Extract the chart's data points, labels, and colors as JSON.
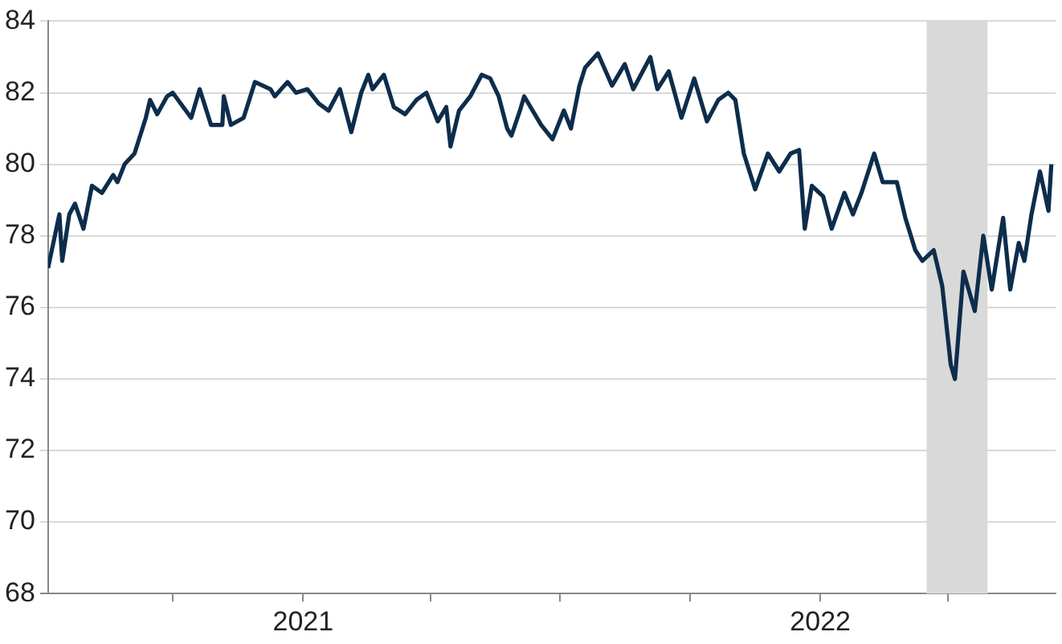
{
  "chart_data": {
    "type": "line",
    "xlim": [
      "2020-07-05",
      "2022-06-16"
    ],
    "ylim": [
      68,
      84
    ],
    "yticks": [
      68,
      70,
      72,
      74,
      76,
      78,
      80,
      82,
      84
    ],
    "xticks": [
      {
        "value": "2020-10-01",
        "label": null
      },
      {
        "value": "2021-01-01",
        "label": "2021"
      },
      {
        "value": "2021-04-01",
        "label": null
      },
      {
        "value": "2021-07-01",
        "label": null
      },
      {
        "value": "2021-10-01",
        "label": null
      },
      {
        "value": "2022-01-01",
        "label": "2022"
      },
      {
        "value": "2022-04-01",
        "label": null
      }
    ],
    "grid": "y",
    "legend": false,
    "marker": "none",
    "line_style": "solid",
    "bands": [
      {
        "axis": "x",
        "from": "2022-03-17",
        "to": "2022-04-29",
        "color": "#d9d9d9"
      }
    ],
    "series": [
      {
        "color": "#0d2d4c",
        "x": [
          "2020-07-05",
          "2020-07-13",
          "2020-07-15",
          "2020-07-20",
          "2020-07-24",
          "2020-07-30",
          "2020-08-05",
          "2020-08-12",
          "2020-08-20",
          "2020-08-23",
          "2020-08-28",
          "2020-09-04",
          "2020-09-12",
          "2020-09-15",
          "2020-09-20",
          "2020-09-27",
          "2020-10-01",
          "2020-10-14",
          "2020-10-20",
          "2020-10-28",
          "2020-11-05",
          "2020-11-06",
          "2020-11-11",
          "2020-11-20",
          "2020-11-28",
          "2020-12-09",
          "2020-12-12",
          "2020-12-21",
          "2020-12-27",
          "2021-01-04",
          "2021-01-12",
          "2021-01-19",
          "2021-01-27",
          "2021-02-04",
          "2021-02-11",
          "2021-02-16",
          "2021-02-19",
          "2021-02-27",
          "2021-03-06",
          "2021-03-14",
          "2021-03-22",
          "2021-03-29",
          "2021-04-06",
          "2021-04-12",
          "2021-04-15",
          "2021-04-21",
          "2021-04-29",
          "2021-05-07",
          "2021-05-13",
          "2021-05-19",
          "2021-05-25",
          "2021-05-28",
          "2021-06-03",
          "2021-06-06",
          "2021-06-18",
          "2021-06-26",
          "2021-07-04",
          "2021-07-09",
          "2021-07-15",
          "2021-07-19",
          "2021-07-28",
          "2021-08-07",
          "2021-08-16",
          "2021-08-22",
          "2021-09-03",
          "2021-09-08",
          "2021-09-16",
          "2021-09-25",
          "2021-10-04",
          "2021-10-13",
          "2021-10-21",
          "2021-10-28",
          "2021-11-02",
          "2021-11-08",
          "2021-11-16",
          "2021-11-25",
          "2021-12-03",
          "2021-12-11",
          "2021-12-17",
          "2021-12-21",
          "2021-12-26",
          "2022-01-03",
          "2022-01-09",
          "2022-01-18",
          "2022-01-24",
          "2022-01-30",
          "2022-02-08",
          "2022-02-14",
          "2022-02-24",
          "2022-03-02",
          "2022-03-09",
          "2022-03-14",
          "2022-03-22",
          "2022-03-28",
          "2022-04-03",
          "2022-04-06",
          "2022-04-12",
          "2022-04-20",
          "2022-04-26",
          "2022-05-02",
          "2022-05-10",
          "2022-05-15",
          "2022-05-21",
          "2022-05-25",
          "2022-05-30",
          "2022-06-05",
          "2022-06-11",
          "2022-06-13"
        ],
        "values": [
          77.1,
          78.6,
          77.3,
          78.6,
          78.9,
          78.2,
          79.4,
          79.2,
          79.7,
          79.5,
          80.0,
          80.3,
          81.3,
          81.8,
          81.4,
          81.9,
          82.0,
          81.3,
          82.1,
          81.1,
          81.1,
          81.9,
          81.1,
          81.3,
          82.3,
          82.1,
          81.9,
          82.3,
          82.0,
          82.1,
          81.7,
          81.5,
          82.1,
          80.9,
          82.0,
          82.5,
          82.1,
          82.5,
          81.6,
          81.4,
          81.8,
          82.0,
          81.2,
          81.6,
          80.5,
          81.5,
          81.9,
          82.5,
          82.4,
          81.9,
          81.0,
          80.8,
          81.5,
          81.9,
          81.1,
          80.7,
          81.5,
          81.0,
          82.2,
          82.7,
          83.1,
          82.2,
          82.8,
          82.1,
          83.0,
          82.1,
          82.6,
          81.3,
          82.4,
          81.2,
          81.8,
          82.0,
          81.8,
          80.3,
          79.3,
          80.3,
          79.8,
          80.3,
          80.4,
          78.2,
          79.4,
          79.1,
          78.2,
          79.2,
          78.6,
          79.2,
          80.3,
          79.5,
          79.5,
          78.5,
          77.6,
          77.3,
          77.6,
          76.6,
          74.4,
          74.0,
          77.0,
          75.9,
          78.0,
          76.5,
          78.5,
          76.5,
          77.8,
          77.3,
          78.6,
          79.8,
          78.7,
          80.0
        ]
      }
    ]
  }
}
